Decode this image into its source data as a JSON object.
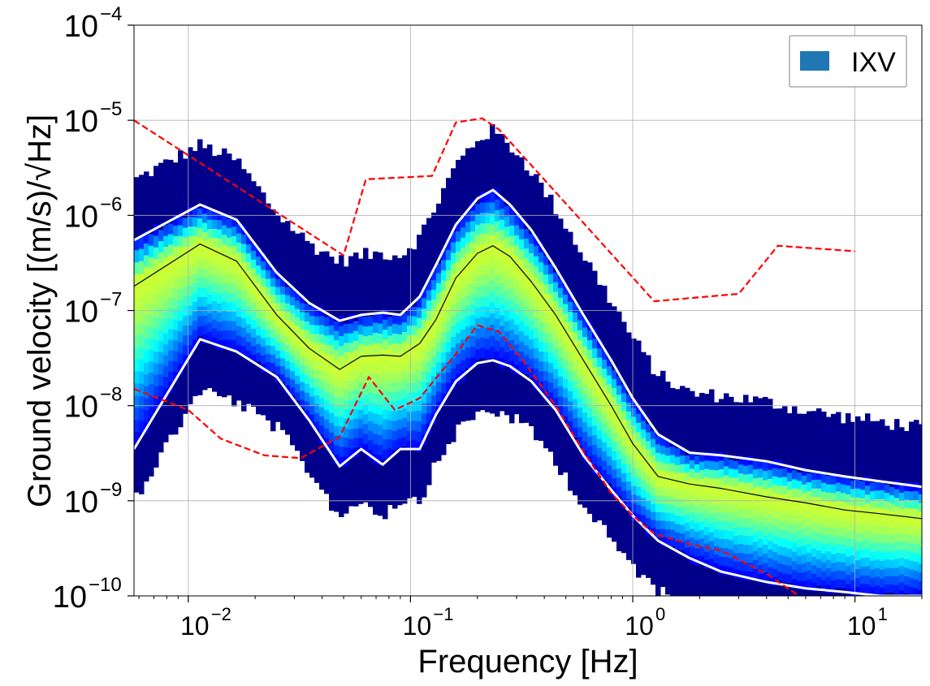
{
  "chart_data": {
    "type": "heatmap",
    "title": "",
    "xlabel": "Frequency [Hz]",
    "ylabel": "Ground velocity [(m/s)/√Hz]",
    "xscale": "log",
    "yscale": "log",
    "xlim": [
      0.0057,
      20
    ],
    "ylim": [
      1e-10,
      0.0001
    ],
    "grid": true,
    "legend": {
      "position": "top-right",
      "entries": [
        {
          "label": "IXV",
          "color": "#1f77b4"
        }
      ]
    },
    "x_ticks": [
      {
        "value": 0.01,
        "base": "10",
        "exp": "−2"
      },
      {
        "value": 0.1,
        "base": "10",
        "exp": "−1"
      },
      {
        "value": 1,
        "base": "10",
        "exp": "0"
      },
      {
        "value": 10,
        "base": "10",
        "exp": "1"
      }
    ],
    "y_ticks": [
      {
        "value": 1e-10,
        "base": "10",
        "exp": "−10"
      },
      {
        "value": 1e-09,
        "base": "10",
        "exp": "−9"
      },
      {
        "value": 1e-08,
        "base": "10",
        "exp": "−8"
      },
      {
        "value": 1e-07,
        "base": "10",
        "exp": "−7"
      },
      {
        "value": 1e-06,
        "base": "10",
        "exp": "−6"
      },
      {
        "value": 1e-05,
        "base": "10",
        "exp": "−5"
      },
      {
        "value": 0.0001,
        "base": "10",
        "exp": "−4"
      }
    ],
    "colormap": [
      "#00007f",
      "#0000ff",
      "#007fff",
      "#00ffff",
      "#7fff7f",
      "#ffff00"
    ],
    "series": [
      {
        "kind": "upper-percentile",
        "color": "#ffffff",
        "x": [
          0.0057,
          0.0113,
          0.0165,
          0.025,
          0.035,
          0.048,
          0.06,
          0.075,
          0.09,
          0.11,
          0.13,
          0.16,
          0.2,
          0.235,
          0.28,
          0.35,
          0.45,
          0.6,
          0.8,
          1.0,
          1.3,
          1.8,
          2.5,
          4,
          6,
          9,
          13,
          20
        ],
        "y": [
          5.5e-07,
          1.3e-06,
          9e-07,
          2.5e-07,
          1.2e-07,
          7.8e-08,
          9e-08,
          9.5e-08,
          9e-08,
          1.4e-07,
          3e-07,
          8e-07,
          1.5e-06,
          1.85e-06,
          1.3e-06,
          7e-07,
          2.8e-07,
          9e-08,
          3e-08,
          1.2e-08,
          5e-09,
          3.2e-09,
          3e-09,
          2.6e-09,
          2.1e-09,
          1.8e-09,
          1.6e-09,
          1.4e-09
        ]
      },
      {
        "kind": "median",
        "color": "#000000",
        "x": [
          0.0057,
          0.0113,
          0.0165,
          0.025,
          0.035,
          0.048,
          0.06,
          0.075,
          0.09,
          0.11,
          0.13,
          0.16,
          0.2,
          0.235,
          0.28,
          0.35,
          0.45,
          0.6,
          0.8,
          1.0,
          1.3,
          1.8,
          2.5,
          4,
          6,
          9,
          13,
          20
        ],
        "y": [
          1.8e-07,
          5e-07,
          3.3e-07,
          9e-08,
          4e-08,
          2.4e-08,
          3.3e-08,
          3.4e-08,
          3.3e-08,
          4.5e-08,
          8e-08,
          2.2e-07,
          4e-07,
          4.8e-07,
          3.7e-07,
          2e-07,
          9e-08,
          3e-08,
          1e-08,
          4e-09,
          1.8e-09,
          1.5e-09,
          1.35e-09,
          1.1e-09,
          9.5e-10,
          8e-10,
          7.3e-10,
          6.5e-10
        ]
      },
      {
        "kind": "lower-percentile",
        "color": "#ffffff",
        "x": [
          0.0057,
          0.0113,
          0.0165,
          0.025,
          0.035,
          0.048,
          0.06,
          0.075,
          0.09,
          0.11,
          0.13,
          0.16,
          0.2,
          0.235,
          0.28,
          0.35,
          0.45,
          0.6,
          0.8,
          1.0,
          1.3,
          1.8,
          2.5,
          4,
          6,
          9,
          13,
          20
        ],
        "y": [
          3.5e-09,
          5e-08,
          3.7e-08,
          2e-08,
          7e-09,
          2.3e-09,
          3.5e-09,
          2.4e-09,
          3.5e-09,
          3.5e-09,
          8e-09,
          1.8e-08,
          2.8e-08,
          3e-08,
          2.6e-08,
          1.8e-08,
          9e-09,
          3e-09,
          1.3e-09,
          7e-10,
          3.8e-10,
          2.5e-10,
          1.8e-10,
          1.4e-10,
          1.2e-10,
          1.1e-10,
          1e-10,
          1e-10
        ]
      },
      {
        "kind": "high-noise-model",
        "color": "#ff0000",
        "style": "dashed",
        "x": [
          0.0057,
          0.05,
          0.063,
          0.125,
          0.16,
          0.21,
          0.25,
          1.25,
          3.0,
          4.5,
          10
        ],
        "y": [
          1e-05,
          3.8e-07,
          2.4e-06,
          2.6e-06,
          9.5e-06,
          1.05e-05,
          8e-06,
          1.25e-07,
          1.5e-07,
          4.8e-07,
          4.2e-07
        ]
      },
      {
        "kind": "low-noise-model",
        "color": "#ff0000",
        "style": "dashed",
        "x": [
          0.0057,
          0.01,
          0.014,
          0.022,
          0.032,
          0.048,
          0.065,
          0.085,
          0.11,
          0.16,
          0.2,
          0.25,
          0.32,
          0.45,
          0.6,
          0.8,
          1.0,
          1.25,
          1.8,
          2.5,
          4,
          6
        ],
        "y": [
          1.5e-08,
          9e-09,
          4.5e-09,
          3e-09,
          2.8e-09,
          4.7e-09,
          2e-08,
          9e-09,
          1.2e-08,
          3.5e-08,
          7e-08,
          6e-08,
          3e-08,
          1e-08,
          3.3e-09,
          1.2e-09,
          7e-10,
          4.5e-10,
          3.5e-10,
          3e-10,
          1.7e-10,
          9e-11
        ]
      }
    ]
  }
}
